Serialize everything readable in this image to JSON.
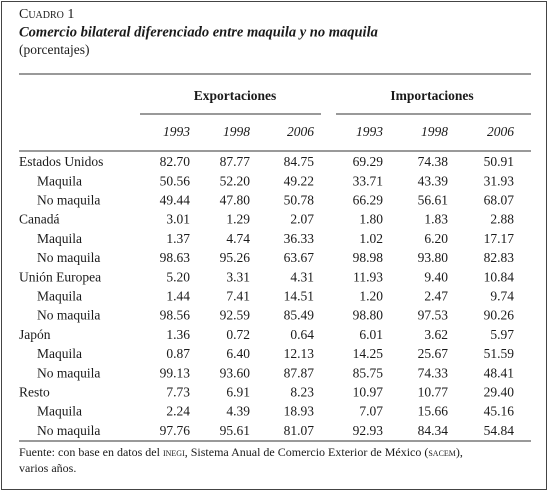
{
  "header": {
    "label": "Cuadro 1",
    "title": "Comercio bilateral diferenciado entre maquila y no maquila",
    "subtitle": "(porcentajes)"
  },
  "table": {
    "groups": [
      "Exportaciones",
      "Importaciones"
    ],
    "years": [
      "1993",
      "1998",
      "2006",
      "1993",
      "1998",
      "2006"
    ],
    "rows": [
      {
        "label": "Estados Unidos",
        "values": [
          "82.70",
          "87.77",
          "84.75",
          "69.29",
          "74.38",
          "50.91"
        ]
      },
      {
        "label": "Maquila",
        "values": [
          "50.56",
          "52.20",
          "49.22",
          "33.71",
          "43.39",
          "31.93"
        ]
      },
      {
        "label": "No maquila",
        "values": [
          "49.44",
          "47.80",
          "50.78",
          "66.29",
          "56.61",
          "68.07"
        ]
      },
      {
        "label": "Canadá",
        "values": [
          "3.01",
          "1.29",
          "2.07",
          "1.80",
          "1.83",
          "2.88"
        ]
      },
      {
        "label": "Maquila",
        "values": [
          "1.37",
          "4.74",
          "36.33",
          "1.02",
          "6.20",
          "17.17"
        ]
      },
      {
        "label": "No maquila",
        "values": [
          "98.63",
          "95.26",
          "63.67",
          "98.98",
          "93.80",
          "82.83"
        ]
      },
      {
        "label": "Unión Europea",
        "values": [
          "5.20",
          "3.31",
          "4.31",
          "11.93",
          "9.40",
          "10.84"
        ]
      },
      {
        "label": "Maquila",
        "values": [
          "1.44",
          "7.41",
          "14.51",
          "1.20",
          "2.47",
          "9.74"
        ]
      },
      {
        "label": "No maquila",
        "values": [
          "98.56",
          "92.59",
          "85.49",
          "98.80",
          "97.53",
          "90.26"
        ]
      },
      {
        "label": "Japón",
        "values": [
          "1.36",
          "0.72",
          "0.64",
          "6.01",
          "3.62",
          "5.97"
        ]
      },
      {
        "label": "Maquila",
        "values": [
          "0.87",
          "6.40",
          "12.13",
          "14.25",
          "25.67",
          "51.59"
        ]
      },
      {
        "label": "No maquila",
        "values": [
          "99.13",
          "93.60",
          "87.87",
          "85.75",
          "74.33",
          "48.41"
        ]
      },
      {
        "label": "Resto",
        "values": [
          "7.73",
          "6.91",
          "8.23",
          "10.97",
          "10.77",
          "29.40"
        ]
      },
      {
        "label": "Maquila",
        "values": [
          "2.24",
          "4.39",
          "18.93",
          "7.07",
          "15.66",
          "45.16"
        ]
      },
      {
        "label": "No maquila",
        "values": [
          "97.76",
          "95.61",
          "81.07",
          "92.93",
          "84.34",
          "54.84"
        ]
      }
    ]
  },
  "note": {
    "text_1": "Fuente: con base en datos del ",
    "acronym_1": "inegi",
    "text_2": ", Sistema Anual de Comercio Exterior de México (",
    "acronym_2": "sacem",
    "text_3": "),",
    "text_4": "varios años."
  }
}
